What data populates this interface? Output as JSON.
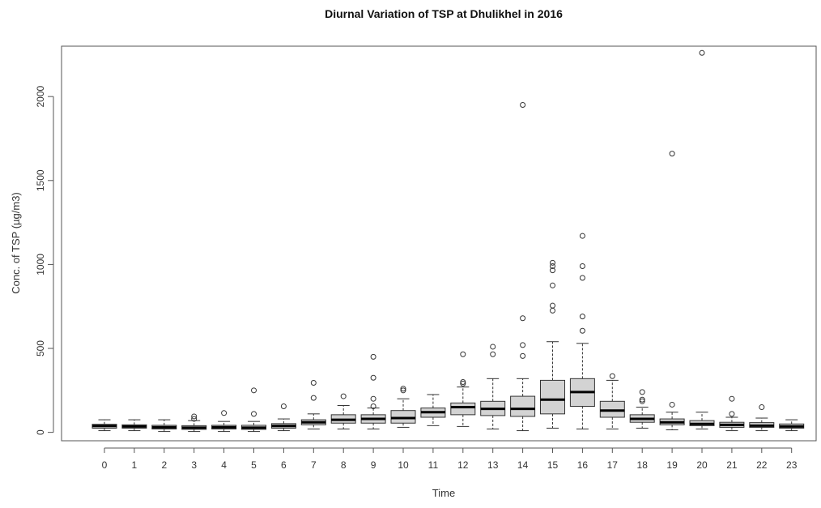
{
  "chart_data": {
    "type": "boxplot",
    "title": "Diurnal Variation of TSP at Dhulikhel in 2016",
    "xlabel": "Time",
    "ylabel": "Conc. of TSP (µg/m3)",
    "ylim": [
      -50,
      2300
    ],
    "yticks": [
      0,
      500,
      1000,
      1500,
      2000
    ],
    "categories": [
      "0",
      "1",
      "2",
      "3",
      "4",
      "5",
      "6",
      "7",
      "8",
      "9",
      "10",
      "11",
      "12",
      "13",
      "14",
      "15",
      "16",
      "17",
      "18",
      "19",
      "20",
      "21",
      "22",
      "23"
    ],
    "boxes": [
      {
        "min": 10,
        "q1": 25,
        "median": 38,
        "q3": 48,
        "max": 75,
        "outliers": []
      },
      {
        "min": 10,
        "q1": 25,
        "median": 35,
        "q3": 45,
        "max": 75,
        "outliers": []
      },
      {
        "min": 5,
        "q1": 20,
        "median": 30,
        "q3": 42,
        "max": 75,
        "outliers": []
      },
      {
        "min": 5,
        "q1": 18,
        "median": 28,
        "q3": 40,
        "max": 70,
        "outliers": [
          95,
          80
        ]
      },
      {
        "min": 5,
        "q1": 20,
        "median": 30,
        "q3": 42,
        "max": 65,
        "outliers": [
          115
        ]
      },
      {
        "min": 5,
        "q1": 18,
        "median": 28,
        "q3": 42,
        "max": 65,
        "outliers": [
          250,
          110
        ]
      },
      {
        "min": 10,
        "q1": 25,
        "median": 38,
        "q3": 52,
        "max": 80,
        "outliers": [
          155
        ]
      },
      {
        "min": 20,
        "q1": 45,
        "median": 60,
        "q3": 75,
        "max": 110,
        "outliers": [
          295,
          205
        ]
      },
      {
        "min": 20,
        "q1": 55,
        "median": 75,
        "q3": 105,
        "max": 160,
        "outliers": [
          215
        ]
      },
      {
        "min": 20,
        "q1": 55,
        "median": 80,
        "q3": 105,
        "max": 145,
        "outliers": [
          450,
          325,
          200,
          155
        ]
      },
      {
        "min": 30,
        "q1": 55,
        "median": 85,
        "q3": 130,
        "max": 200,
        "outliers": [
          260,
          250
        ]
      },
      {
        "min": 40,
        "q1": 90,
        "median": 120,
        "q3": 145,
        "max": 225,
        "outliers": []
      },
      {
        "min": 35,
        "q1": 105,
        "median": 150,
        "q3": 175,
        "max": 270,
        "outliers": [
          465,
          300,
          290
        ]
      },
      {
        "min": 20,
        "q1": 100,
        "median": 140,
        "q3": 185,
        "max": 320,
        "outliers": [
          510,
          465
        ]
      },
      {
        "min": 10,
        "q1": 95,
        "median": 140,
        "q3": 215,
        "max": 320,
        "outliers": [
          1950,
          680,
          520,
          455
        ]
      },
      {
        "min": 25,
        "q1": 110,
        "median": 195,
        "q3": 310,
        "max": 540,
        "outliers": [
          1010,
          990,
          965,
          875,
          755,
          725
        ]
      },
      {
        "min": 20,
        "q1": 155,
        "median": 240,
        "q3": 320,
        "max": 530,
        "outliers": [
          1170,
          990,
          920,
          690,
          605
        ]
      },
      {
        "min": 20,
        "q1": 90,
        "median": 130,
        "q3": 185,
        "max": 310,
        "outliers": [
          335
        ]
      },
      {
        "min": 25,
        "q1": 60,
        "median": 80,
        "q3": 105,
        "max": 150,
        "outliers": [
          240,
          195,
          185
        ]
      },
      {
        "min": 15,
        "q1": 45,
        "median": 60,
        "q3": 80,
        "max": 120,
        "outliers": [
          1660,
          165
        ]
      },
      {
        "min": 20,
        "q1": 40,
        "median": 50,
        "q3": 70,
        "max": 120,
        "outliers": [
          2260
        ]
      },
      {
        "min": 10,
        "q1": 30,
        "median": 45,
        "q3": 60,
        "max": 90,
        "outliers": [
          200,
          110
        ]
      },
      {
        "min": 10,
        "q1": 30,
        "median": 40,
        "q3": 58,
        "max": 85,
        "outliers": [
          150
        ]
      },
      {
        "min": 10,
        "q1": 25,
        "median": 35,
        "q3": 50,
        "max": 75,
        "outliers": []
      }
    ],
    "colors": {
      "box_fill": "#d3d3d3",
      "stroke": "#333333",
      "median": "#000000"
    }
  }
}
